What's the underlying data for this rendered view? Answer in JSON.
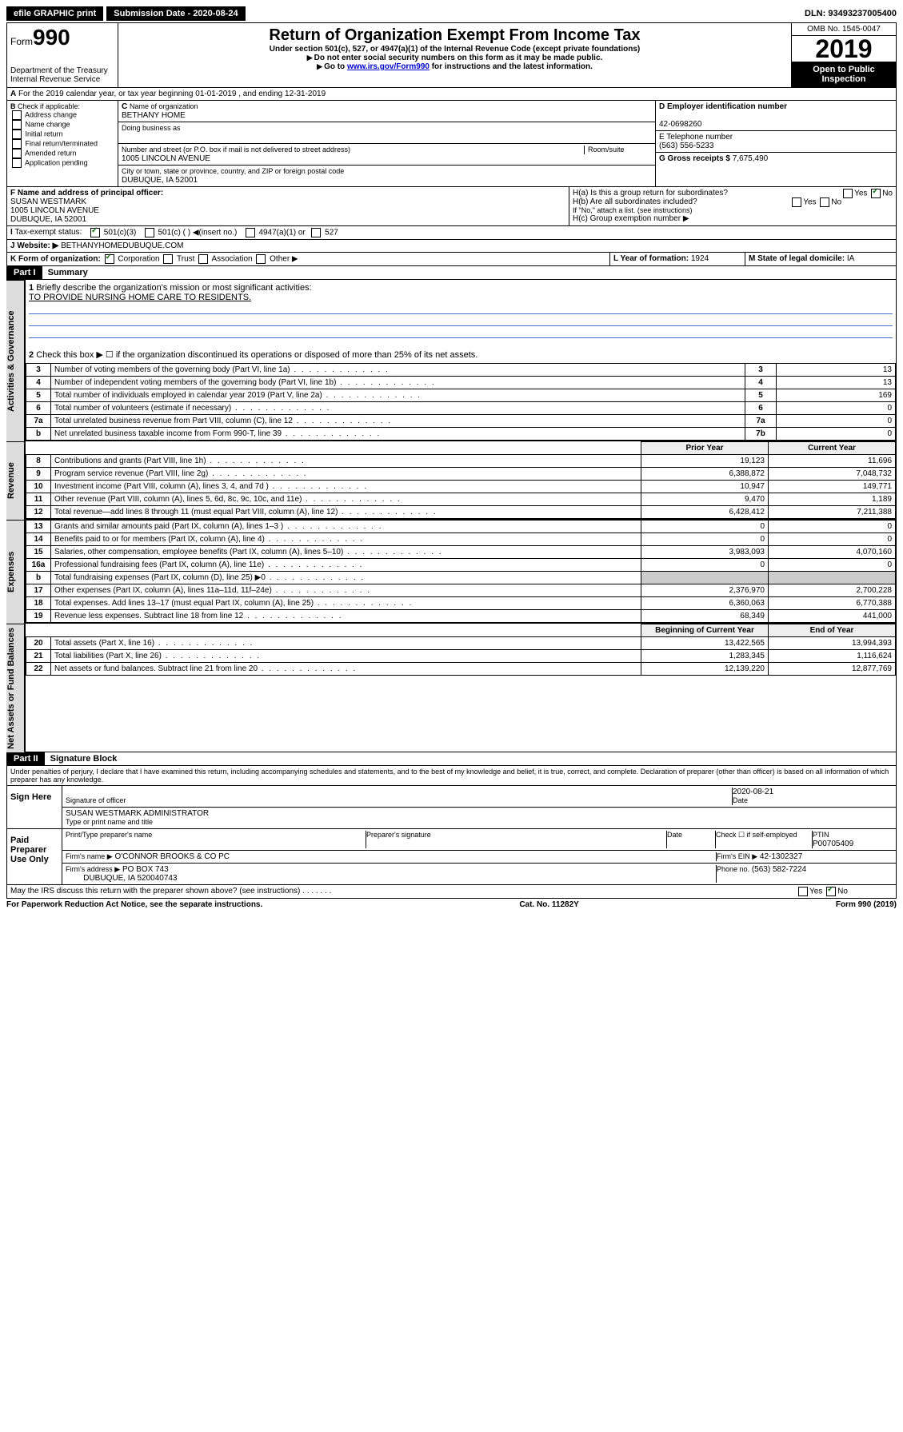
{
  "topbar": {
    "efile": "efile GRAPHIC print",
    "submission_label": "Submission Date - 2020-08-24",
    "dln": "DLN: 93493237005400"
  },
  "header": {
    "form_word": "Form",
    "form_num": "990",
    "dept": "Department of the Treasury",
    "irs": "Internal Revenue Service",
    "title": "Return of Organization Exempt From Income Tax",
    "subtitle": "Under section 501(c), 527, or 4947(a)(1) of the Internal Revenue Code (except private foundations)",
    "note1": "Do not enter social security numbers on this form as it may be made public.",
    "note2_a": "Go to ",
    "note2_link": "www.irs.gov/Form990",
    "note2_b": " for instructions and the latest information.",
    "omb": "OMB No. 1545-0047",
    "year": "2019",
    "open": "Open to Public Inspection"
  },
  "rowA": "For the 2019 calendar year, or tax year beginning 01-01-2019    , and ending 12-31-2019",
  "colB": {
    "label": "Check if applicable:",
    "o1": "Address change",
    "o2": "Name change",
    "o3": "Initial return",
    "o4": "Final return/terminated",
    "o5": "Amended return",
    "o6": "Application pending"
  },
  "colC": {
    "name_label": "Name of organization",
    "name": "BETHANY HOME",
    "dba_label": "Doing business as",
    "addr_label": "Number and street (or P.O. box if mail is not delivered to street address)",
    "room": "Room/suite",
    "addr": "1005 LINCOLN AVENUE",
    "city_label": "City or town, state or province, country, and ZIP or foreign postal code",
    "city": "DUBUQUE, IA  52001"
  },
  "colDE": {
    "d_label": "D Employer identification number",
    "ein": "42-0698260",
    "e_label": "E Telephone number",
    "phone": "(563) 556-5233",
    "g_label": "G Gross receipts $ ",
    "gross": "7,675,490"
  },
  "rowF": {
    "label": "F  Name and address of principal officer:",
    "name": "SUSAN WESTMARK",
    "addr1": "1005 LINCOLN AVENUE",
    "addr2": "DUBUQUE, IA  52001"
  },
  "rowH": {
    "ha": "H(a)  Is this a group return for subordinates?",
    "hb": "H(b)  Are all subordinates included?",
    "hb_note": "If \"No,\" attach a list. (see instructions)",
    "hc": "H(c)  Group exemption number ▶",
    "yes": "Yes",
    "no": "No"
  },
  "rowI": {
    "label": "Tax-exempt status:",
    "o1": "501(c)(3)",
    "o2": "501(c) (   ) ◀(insert no.)",
    "o3": "4947(a)(1) or",
    "o4": "527"
  },
  "rowJ": {
    "label": "Website: ▶",
    "val": "BETHANYHOMEDUBUQUE.COM"
  },
  "rowK": {
    "label": "K Form of organization:",
    "o1": "Corporation",
    "o2": "Trust",
    "o3": "Association",
    "o4": "Other ▶",
    "l": "L Year of formation: ",
    "lval": "1924",
    "m": "M State of legal domicile: ",
    "mval": "IA"
  },
  "part1": {
    "tag": "Part I",
    "title": "Summary"
  },
  "summary": {
    "q1": "Briefly describe the organization's mission or most significant activities:",
    "mission": "TO PROVIDE NURSING HOME CARE TO RESIDENTS.",
    "q2": "Check this box ▶ ☐  if the organization discontinued its operations or disposed of more than 25% of its net assets.",
    "lines_gov": [
      {
        "n": "3",
        "d": "Number of voting members of the governing body (Part VI, line 1a)",
        "box": "3",
        "v": "13"
      },
      {
        "n": "4",
        "d": "Number of independent voting members of the governing body (Part VI, line 1b)",
        "box": "4",
        "v": "13"
      },
      {
        "n": "5",
        "d": "Total number of individuals employed in calendar year 2019 (Part V, line 2a)",
        "box": "5",
        "v": "169"
      },
      {
        "n": "6",
        "d": "Total number of volunteers (estimate if necessary)",
        "box": "6",
        "v": "0"
      },
      {
        "n": "7a",
        "d": "Total unrelated business revenue from Part VIII, column (C), line 12",
        "box": "7a",
        "v": "0"
      },
      {
        "n": "b",
        "d": "Net unrelated business taxable income from Form 990-T, line 39",
        "box": "7b",
        "v": "0"
      }
    ],
    "hdr_prior": "Prior Year",
    "hdr_curr": "Current Year",
    "lines_rev": [
      {
        "n": "8",
        "d": "Contributions and grants (Part VIII, line 1h)",
        "p": "19,123",
        "c": "11,696"
      },
      {
        "n": "9",
        "d": "Program service revenue (Part VIII, line 2g)",
        "p": "6,388,872",
        "c": "7,048,732"
      },
      {
        "n": "10",
        "d": "Investment income (Part VIII, column (A), lines 3, 4, and 7d )",
        "p": "10,947",
        "c": "149,771"
      },
      {
        "n": "11",
        "d": "Other revenue (Part VIII, column (A), lines 5, 6d, 8c, 9c, 10c, and 11e)",
        "p": "9,470",
        "c": "1,189"
      },
      {
        "n": "12",
        "d": "Total revenue—add lines 8 through 11 (must equal Part VIII, column (A), line 12)",
        "p": "6,428,412",
        "c": "7,211,388"
      }
    ],
    "lines_exp": [
      {
        "n": "13",
        "d": "Grants and similar amounts paid (Part IX, column (A), lines 1–3 )",
        "p": "0",
        "c": "0"
      },
      {
        "n": "14",
        "d": "Benefits paid to or for members (Part IX, column (A), line 4)",
        "p": "0",
        "c": "0"
      },
      {
        "n": "15",
        "d": "Salaries, other compensation, employee benefits (Part IX, column (A), lines 5–10)",
        "p": "3,983,093",
        "c": "4,070,160"
      },
      {
        "n": "16a",
        "d": "Professional fundraising fees (Part IX, column (A), line 11e)",
        "p": "0",
        "c": "0"
      },
      {
        "n": "b",
        "d": "Total fundraising expenses (Part IX, column (D), line 25) ▶0",
        "p": "",
        "c": ""
      },
      {
        "n": "17",
        "d": "Other expenses (Part IX, column (A), lines 11a–11d, 11f–24e)",
        "p": "2,376,970",
        "c": "2,700,228"
      },
      {
        "n": "18",
        "d": "Total expenses. Add lines 13–17 (must equal Part IX, column (A), line 25)",
        "p": "6,360,063",
        "c": "6,770,388"
      },
      {
        "n": "19",
        "d": "Revenue less expenses. Subtract line 18 from line 12",
        "p": "68,349",
        "c": "441,000"
      }
    ],
    "hdr_beg": "Beginning of Current Year",
    "hdr_end": "End of Year",
    "lines_net": [
      {
        "n": "20",
        "d": "Total assets (Part X, line 16)",
        "p": "13,422,565",
        "c": "13,994,393"
      },
      {
        "n": "21",
        "d": "Total liabilities (Part X, line 26)",
        "p": "1,283,345",
        "c": "1,116,624"
      },
      {
        "n": "22",
        "d": "Net assets or fund balances. Subtract line 21 from line 20",
        "p": "12,139,220",
        "c": "12,877,769"
      }
    ],
    "vlabel_gov": "Activities & Governance",
    "vlabel_rev": "Revenue",
    "vlabel_exp": "Expenses",
    "vlabel_net": "Net Assets or Fund Balances"
  },
  "part2": {
    "tag": "Part II",
    "title": "Signature Block"
  },
  "sig": {
    "perjury": "Under penalties of perjury, I declare that I have examined this return, including accompanying schedules and statements, and to the best of my knowledge and belief, it is true, correct, and complete. Declaration of preparer (other than officer) is based on all information of which preparer has any knowledge.",
    "sign_here": "Sign Here",
    "sig_officer": "Signature of officer",
    "date": "2020-08-21",
    "date_lbl": "Date",
    "typed": "SUSAN WESTMARK ADMINISTRATOR",
    "typed_lbl": "Type or print name and title",
    "paid": "Paid Preparer Use Only",
    "prep_name_lbl": "Print/Type preparer's name",
    "prep_sig_lbl": "Preparer's signature",
    "check_lbl": "Check ☐ if self-employed",
    "ptin_lbl": "PTIN",
    "ptin": "P00705409",
    "firm_name_lbl": "Firm's name   ▶",
    "firm_name": "O'CONNOR BROOKS & CO PC",
    "firm_ein_lbl": "Firm's EIN ▶",
    "firm_ein": "42-1302327",
    "firm_addr_lbl": "Firm's address ▶",
    "firm_addr": "PO BOX 743",
    "firm_city": "DUBUQUE, IA  520040743",
    "phone_lbl": "Phone no.",
    "phone": "(563) 582-7224",
    "discuss": "May the IRS discuss this return with the preparer shown above? (see instructions)"
  },
  "footer": {
    "l": "For Paperwork Reduction Act Notice, see the separate instructions.",
    "c": "Cat. No. 11282Y",
    "r": "Form 990 (2019)"
  }
}
